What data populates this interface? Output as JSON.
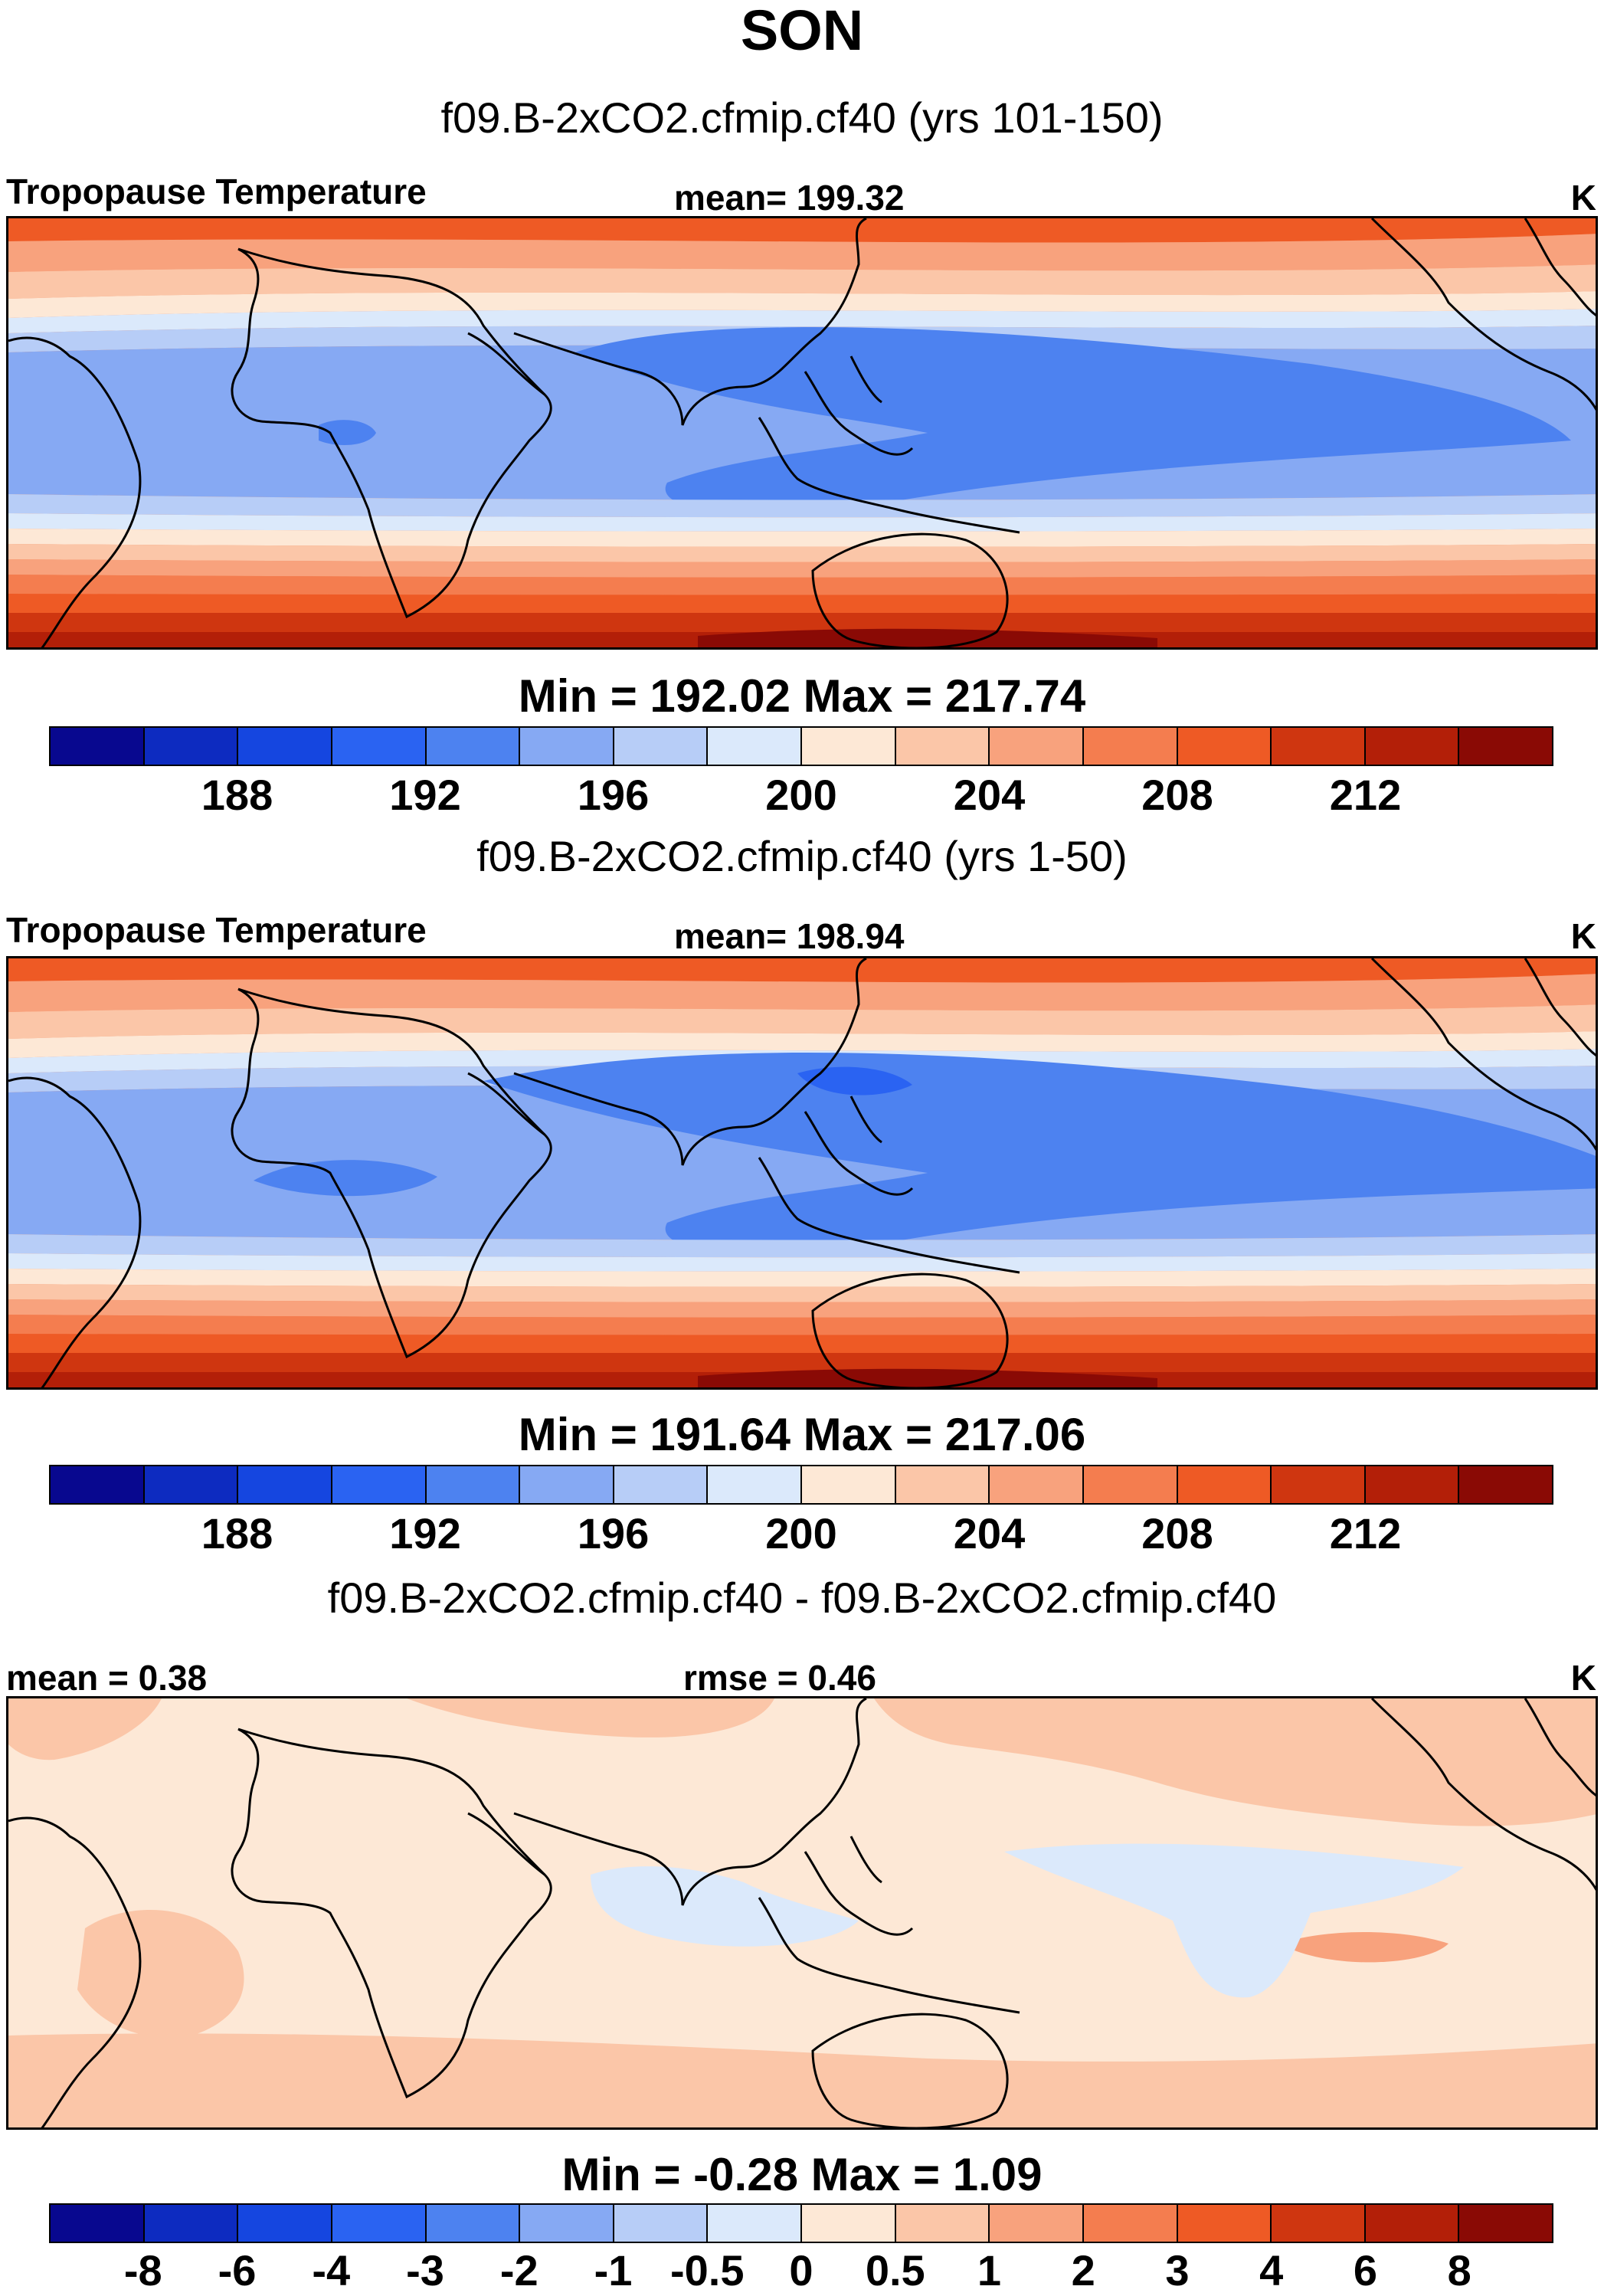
{
  "title": "SON",
  "panels": [
    {
      "case_title": "f09.B-2xCO2.cfmip.cf40 (yrs 101-150)",
      "left_label": "Tropopause Temperature",
      "center_label": "mean= 199.32",
      "units": "K",
      "minmax": "Min = 192.02 Max = 217.74",
      "colorbar_ticks": [
        "188",
        "192",
        "196",
        "200",
        "204",
        "208",
        "212"
      ]
    },
    {
      "case_title": "f09.B-2xCO2.cfmip.cf40 (yrs 1-50)",
      "left_label": "Tropopause Temperature",
      "center_label": "mean= 198.94",
      "units": "K",
      "minmax": "Min = 191.64 Max = 217.06",
      "colorbar_ticks": [
        "188",
        "192",
        "196",
        "200",
        "204",
        "208",
        "212"
      ]
    },
    {
      "case_title": "f09.B-2xCO2.cfmip.cf40 - f09.B-2xCO2.cfmip.cf40",
      "left_label": "mean =   0.38",
      "center_label": "rmse =   0.46",
      "units": "K",
      "minmax": "Min =  -0.28 Max =    1.09",
      "colorbar_ticks": [
        "-8",
        "-6",
        "-4",
        "-3",
        "-2",
        "-1",
        "-0.5",
        "0",
        "0.5",
        "1",
        "2",
        "3",
        "4",
        "6",
        "8"
      ]
    }
  ],
  "colorbar_colors": [
    "#08088f",
    "#0d2bc0",
    "#1546e0",
    "#2a63f2",
    "#4d82f0",
    "#86a9f3",
    "#b7cdf7",
    "#dbe9fb",
    "#fde8d6",
    "#fbc6a8",
    "#f8a27d",
    "#f47d4f",
    "#ee5a25",
    "#cf3610",
    "#b31f08",
    "#8a0a05"
  ]
}
